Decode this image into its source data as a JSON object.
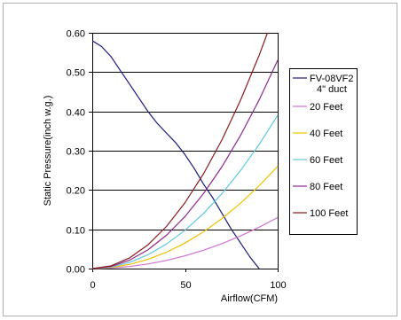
{
  "colors": {
    "background": "#ffffff",
    "frame": "#b0b0b0",
    "grid": "#000000",
    "axis": "#000000"
  },
  "chart_data": {
    "type": "line",
    "title": "",
    "xlabel": "Airflow(CFM)",
    "ylabel": "Static Pressure(inch w.g.)",
    "xlim": [
      0,
      100
    ],
    "ylim": [
      0,
      0.6
    ],
    "x_ticks": [
      0,
      50,
      100
    ],
    "x_tick_labels": [
      "0",
      "50",
      "100"
    ],
    "y_ticks": [
      0,
      0.1,
      0.2,
      0.3,
      0.4,
      0.5,
      0.6
    ],
    "y_tick_labels": [
      "0.00",
      "0.10",
      "0.20",
      "0.30",
      "0.40",
      "0.50",
      "0.60"
    ],
    "grid": "horizontal",
    "legend_position": "right",
    "series": [
      {
        "name": "FV-08VF2",
        "name_line2": "4\" duct",
        "color": "#1a1a80",
        "points": [
          [
            0,
            0.58
          ],
          [
            5,
            0.565
          ],
          [
            10,
            0.54
          ],
          [
            15,
            0.505
          ],
          [
            20,
            0.47
          ],
          [
            25,
            0.435
          ],
          [
            30,
            0.4
          ],
          [
            35,
            0.37
          ],
          [
            40,
            0.345
          ],
          [
            45,
            0.32
          ],
          [
            50,
            0.29
          ],
          [
            55,
            0.255
          ],
          [
            60,
            0.215
          ],
          [
            65,
            0.18
          ],
          [
            70,
            0.14
          ],
          [
            75,
            0.1
          ],
          [
            80,
            0.065
          ],
          [
            85,
            0.03
          ],
          [
            90,
            0.0
          ]
        ]
      },
      {
        "name": "20 Feet",
        "color": "#d070d0",
        "points": [
          [
            0,
            0
          ],
          [
            10,
            0.0013
          ],
          [
            20,
            0.0052
          ],
          [
            30,
            0.0117
          ],
          [
            40,
            0.0208
          ],
          [
            50,
            0.0325
          ],
          [
            60,
            0.0468
          ],
          [
            70,
            0.0637
          ],
          [
            80,
            0.0832
          ],
          [
            90,
            0.1053
          ],
          [
            100,
            0.13
          ]
        ]
      },
      {
        "name": "40 Feet",
        "color": "#f0c000",
        "points": [
          [
            0,
            0
          ],
          [
            10,
            0.0026
          ],
          [
            20,
            0.0104
          ],
          [
            30,
            0.0234
          ],
          [
            40,
            0.0416
          ],
          [
            50,
            0.065
          ],
          [
            60,
            0.0936
          ],
          [
            70,
            0.1274
          ],
          [
            80,
            0.1664
          ],
          [
            90,
            0.2106
          ],
          [
            100,
            0.26
          ]
        ]
      },
      {
        "name": "60 Feet",
        "color": "#60c8e0",
        "points": [
          [
            0,
            0
          ],
          [
            10,
            0.0039
          ],
          [
            20,
            0.0156
          ],
          [
            30,
            0.0351
          ],
          [
            40,
            0.0624
          ],
          [
            50,
            0.0975
          ],
          [
            60,
            0.1404
          ],
          [
            70,
            0.1911
          ],
          [
            80,
            0.2496
          ],
          [
            90,
            0.3159
          ],
          [
            100,
            0.39
          ]
        ]
      },
      {
        "name": "80 Feet",
        "color": "#902890",
        "points": [
          [
            0,
            0
          ],
          [
            10,
            0.0053
          ],
          [
            20,
            0.0212
          ],
          [
            30,
            0.0477
          ],
          [
            40,
            0.0848
          ],
          [
            50,
            0.1325
          ],
          [
            60,
            0.1908
          ],
          [
            70,
            0.2597
          ],
          [
            80,
            0.3392
          ],
          [
            90,
            0.4293
          ],
          [
            100,
            0.53
          ]
        ]
      },
      {
        "name": "100 Feet",
        "color": "#8b1a1a",
        "points": [
          [
            0,
            0
          ],
          [
            10,
            0.0067
          ],
          [
            20,
            0.0268
          ],
          [
            30,
            0.0603
          ],
          [
            40,
            0.1072
          ],
          [
            50,
            0.1675
          ],
          [
            60,
            0.2412
          ],
          [
            70,
            0.3283
          ],
          [
            80,
            0.4288
          ],
          [
            90,
            0.5427
          ],
          [
            94.5,
            0.6
          ]
        ]
      }
    ]
  }
}
